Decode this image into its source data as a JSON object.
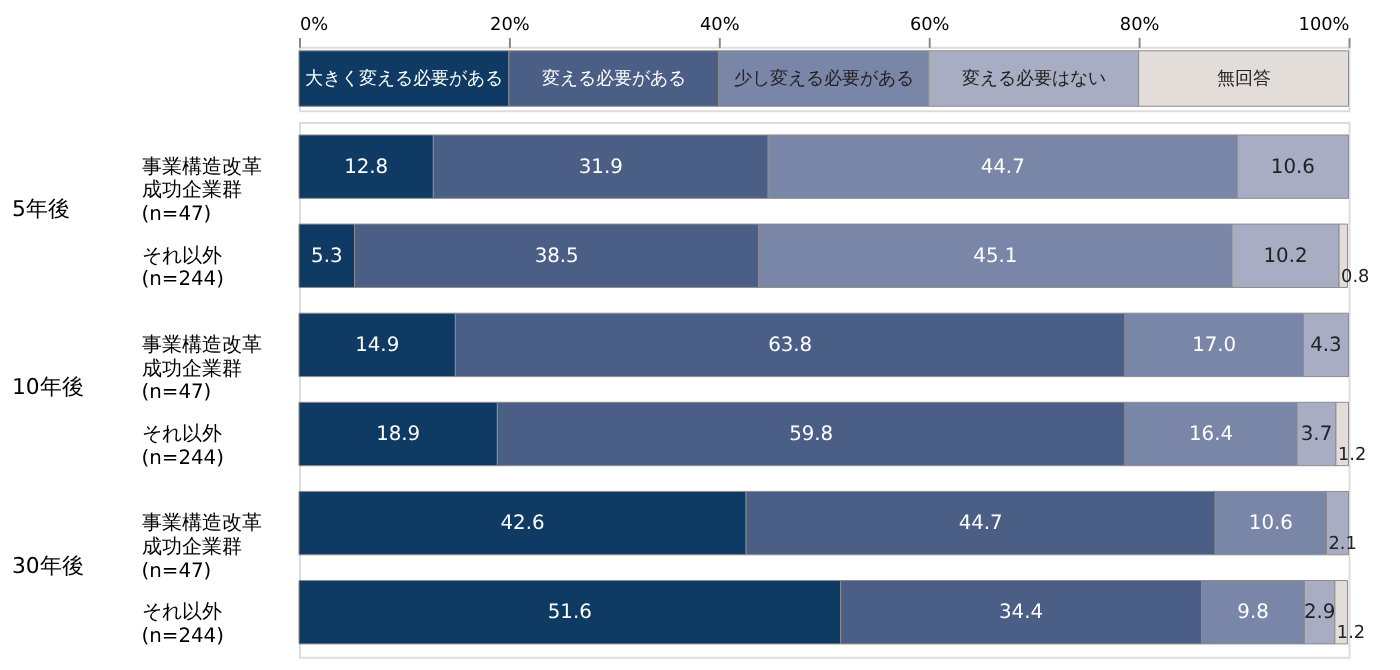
{
  "chart_data": {
    "type": "bar",
    "orientation": "horizontal",
    "stacked": true,
    "legend": "top",
    "categories": [
      "事業構造改革成功企業群 (n=47)",
      "それ以外 (n=244)",
      "事業構造改革成功企業群 (n=47)",
      "それ以外 (n=244)",
      "事業構造改革成功企業群 (n=47)",
      "それ以外 (n=244)"
    ],
    "annotations": [
      "5年後",
      "10年後",
      "30年後"
    ],
    "xlim": [
      0,
      100
    ],
    "xticks": [
      {
        "value": 0,
        "label": "0%"
      },
      {
        "value": 20,
        "label": "20%"
      },
      {
        "value": 40,
        "label": "40%"
      },
      {
        "value": 60,
        "label": "60%"
      },
      {
        "value": 80,
        "label": "80%"
      },
      {
        "value": 100,
        "label": "100%"
      }
    ],
    "series": [
      {
        "name": "大きく変える必要がある",
        "color": "#0e3a64",
        "values": [
          12.8,
          5.3,
          14.9,
          18.9,
          42.6,
          51.6
        ],
        "value_labels": [
          "12.8",
          "5.3",
          "14.9",
          "18.9",
          "42.6",
          "51.6"
        ]
      },
      {
        "name": "変える必要がある",
        "color": "#4b5f86",
        "values": [
          31.9,
          38.5,
          63.8,
          59.8,
          44.7,
          34.4
        ],
        "value_labels": [
          "31.9",
          "38.5",
          "63.8",
          "59.8",
          "44.7",
          "34.4"
        ]
      },
      {
        "name": "少し変える必要がある",
        "color": "#7a86a8",
        "values": [
          44.7,
          45.1,
          17.0,
          16.4,
          10.6,
          9.8
        ],
        "value_labels": [
          "44.7",
          "45.1",
          "17.0",
          "16.4",
          "10.6",
          "9.8"
        ]
      },
      {
        "name": "変える必要はない",
        "color": "#a9adc3",
        "values": [
          10.6,
          10.2,
          4.3,
          3.7,
          2.1,
          2.9
        ],
        "value_labels": [
          "10.6",
          "10.2",
          "4.3",
          "3.7",
          "2.1",
          "2.9"
        ]
      },
      {
        "name": "無回答",
        "color": "#e2ddd8",
        "values": [
          null,
          0.8,
          null,
          1.2,
          null,
          1.2
        ],
        "value_labels": [
          null,
          "0.8",
          null,
          "1.2",
          null,
          "1.2"
        ]
      }
    ]
  }
}
